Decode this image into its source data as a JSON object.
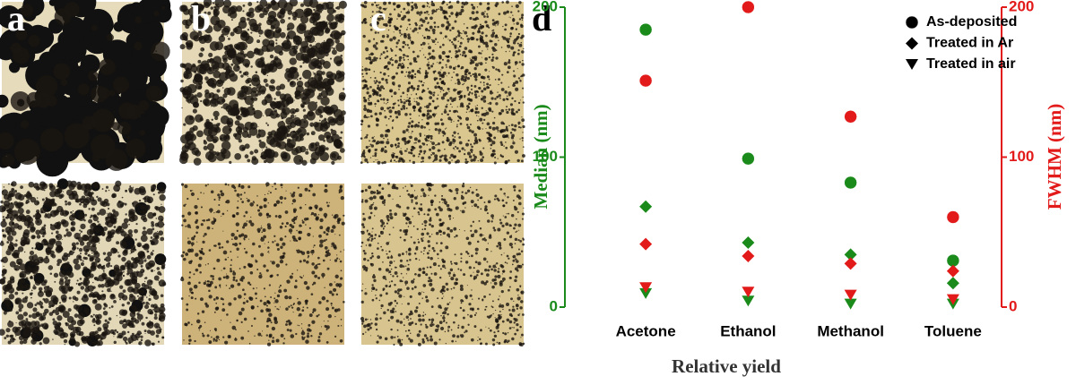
{
  "panel_labels": [
    "a",
    "b",
    "c",
    "d"
  ],
  "chart_data": {
    "type": "scatter",
    "xlabel": "Relative yield",
    "ylabel": "Median (nm)",
    "y2label": "FWHM (nm)",
    "categories": [
      "Acetone",
      "Ethanol",
      "Methanol",
      "Toluene"
    ],
    "ylim": [
      0,
      200
    ],
    "yticks": [
      0,
      100,
      200
    ],
    "ycolor": "#1a8a1a",
    "y2lim": [
      0,
      200
    ],
    "y2ticks": [
      0,
      100,
      200
    ],
    "y2color": "#e31a1a",
    "legend": [
      {
        "name": "As-deposited",
        "marker": "circle"
      },
      {
        "name": "Treated in Ar",
        "marker": "diamond"
      },
      {
        "name": "Treated in air",
        "marker": "triangle"
      }
    ],
    "legend_position": "upper right",
    "series": [
      {
        "marker": "circle",
        "color": "#1a8a1a",
        "axis": "y",
        "values": [
          185,
          99,
          83,
          31
        ]
      },
      {
        "marker": "diamond",
        "color": "#1a8a1a",
        "axis": "y",
        "values": [
          67,
          43,
          35,
          16
        ]
      },
      {
        "marker": "triangle",
        "color": "#1a8a1a",
        "axis": "y",
        "values": [
          9,
          4,
          2,
          2
        ]
      },
      {
        "marker": "circle",
        "color": "#e31a1a",
        "axis": "y2",
        "values": [
          151,
          200,
          127,
          60
        ]
      },
      {
        "marker": "diamond",
        "color": "#e31a1a",
        "axis": "y2",
        "values": [
          42,
          34,
          29,
          24
        ]
      },
      {
        "marker": "triangle",
        "color": "#e31a1a",
        "axis": "y2",
        "values": [
          13,
          10,
          8,
          5
        ]
      }
    ]
  }
}
